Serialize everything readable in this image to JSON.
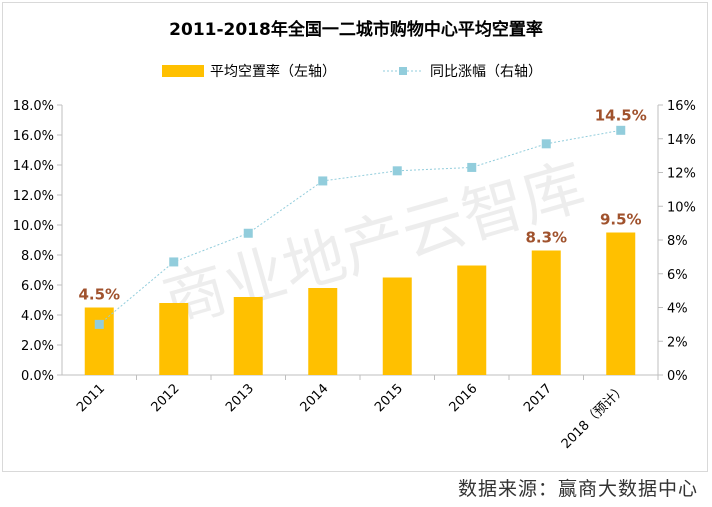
{
  "chart_data": {
    "type": "bar",
    "title": "2011-2018年全国一二城市购物中心平均空置率",
    "categories": [
      "2011",
      "2012",
      "2013",
      "2014",
      "2015",
      "2016",
      "2017",
      "2018（预计）"
    ],
    "series": [
      {
        "name": "平均空置率（左轴）",
        "type": "bar",
        "axis": "left",
        "color": "#FFC000",
        "values": [
          4.5,
          4.8,
          5.2,
          5.8,
          6.5,
          7.3,
          8.3,
          9.5
        ]
      },
      {
        "name": "同比涨幅（右轴）",
        "type": "line",
        "axis": "right",
        "color": "#92CDDC",
        "values": [
          3.0,
          6.7,
          8.4,
          11.5,
          12.1,
          12.3,
          13.7,
          14.5
        ]
      }
    ],
    "data_labels": [
      {
        "series": 0,
        "index": 0,
        "text": "4.5%"
      },
      {
        "series": 0,
        "index": 6,
        "text": "8.3%"
      },
      {
        "series": 0,
        "index": 7,
        "text": "9.5%"
      },
      {
        "series": 1,
        "index": 7,
        "text": "14.5%"
      }
    ],
    "label_color": "#A0522D",
    "y_left": {
      "min": 0,
      "max": 18,
      "step": 2,
      "ticks": [
        "0.0%",
        "2.0%",
        "4.0%",
        "6.0%",
        "8.0%",
        "10.0%",
        "12.0%",
        "14.0%",
        "16.0%",
        "18.0%"
      ]
    },
    "y_right": {
      "min": 0,
      "max": 16,
      "step": 2,
      "ticks": [
        "0%",
        "2%",
        "4%",
        "6%",
        "8%",
        "10%",
        "12%",
        "14%",
        "16%"
      ]
    },
    "legend_position": "top",
    "grid": false
  },
  "watermark": "商业地产云智库",
  "source": "数据来源：赢商大数据中心"
}
